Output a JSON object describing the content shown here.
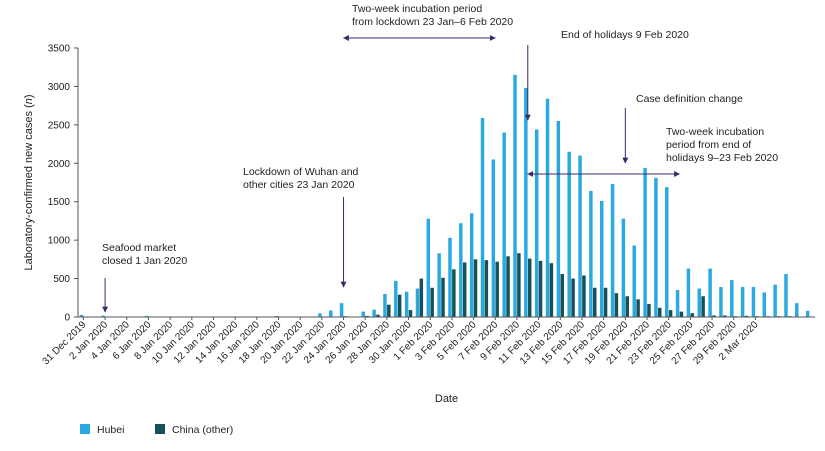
{
  "chart_data": {
    "type": "bar",
    "xlabel": "Date",
    "ylabel": "Laboratory-confirmed new cases (n)",
    "ylim": [
      0,
      3500
    ],
    "yticks": [
      0,
      500,
      1000,
      1500,
      2000,
      2500,
      3000,
      3500
    ],
    "xtick_labels": [
      "31 Dec 2019",
      "2 Jan 2020",
      "4 Jan 2020",
      "6 Jan 2020",
      "8 Jan 2020",
      "10 Jan 2020",
      "12 Jan 2020",
      "14 Jan 2020",
      "16 Jan 2020",
      "18 Jan 2020",
      "20 Jan 2020",
      "22 Jan 2020",
      "24 Jan 2020",
      "26 Jan 2020",
      "28 Jan 2020",
      "30 Jan 2020",
      "1 Feb 2020",
      "3 Feb 2020",
      "5 Feb 2020",
      "7 Feb 2020",
      "9 Feb 2020",
      "11 Feb 2020",
      "13 Feb 2020",
      "15 Feb 2020",
      "17 Feb 2020",
      "19 Feb 2020",
      "21 Feb 2020",
      "23 Feb 2020",
      "25 Feb 2020",
      "27 Feb 2020",
      "29 Feb 2020",
      "2 Mar 2020"
    ],
    "grid": false,
    "legend_position": "bottom-left",
    "series": [
      {
        "name": "Hubei",
        "color": "#29a9df",
        "values": [
          27,
          5,
          18,
          5,
          2,
          3,
          15,
          2,
          2,
          3,
          2,
          3,
          2,
          3,
          2,
          6,
          4,
          3,
          13,
          3,
          2,
          3,
          48,
          85,
          180,
          5,
          70,
          95,
          300,
          470,
          330,
          370,
          1280,
          830,
          1030,
          1220,
          1350,
          2590,
          2050,
          2400,
          3150,
          2980,
          2440,
          2840,
          2550,
          2150,
          2100,
          1640,
          1510,
          1730,
          1280,
          930,
          1940,
          1810,
          1690,
          350,
          630,
          370,
          630,
          390,
          480,
          390,
          390,
          320,
          420,
          560,
          180,
          80
        ]
      },
      {
        "name": "China (other)",
        "color": "#165058",
        "values": [
          0,
          0,
          0,
          0,
          0,
          0,
          0,
          0,
          0,
          0,
          0,
          0,
          0,
          0,
          0,
          0,
          0,
          0,
          0,
          0,
          0,
          0,
          0,
          0,
          10,
          0,
          15,
          30,
          160,
          290,
          90,
          500,
          380,
          510,
          620,
          710,
          750,
          740,
          720,
          790,
          830,
          760,
          730,
          700,
          560,
          500,
          540,
          380,
          380,
          310,
          270,
          230,
          170,
          120,
          90,
          70,
          50,
          270,
          20,
          20,
          10,
          15,
          10,
          10,
          10,
          10,
          5,
          5
        ]
      }
    ],
    "annotations": [
      {
        "id": "seafood",
        "lines": [
          "Seafood market",
          "closed 1 Jan 2020"
        ]
      },
      {
        "id": "lockdown",
        "lines": [
          "Lockdown of Wuhan and",
          "other cities 23 Jan 2020"
        ]
      },
      {
        "id": "incubation1",
        "lines": [
          "Two-week incubation period",
          "from lockdown 23 Jan–6 Feb 2020"
        ]
      },
      {
        "id": "holidays",
        "lines": [
          "End of holidays 9 Feb 2020"
        ]
      },
      {
        "id": "casedef",
        "lines": [
          "Case definition change"
        ]
      },
      {
        "id": "incubation2",
        "lines": [
          "Two-week incubation",
          "period from end of",
          "holidays 9–23 Feb 2020"
        ]
      }
    ]
  }
}
